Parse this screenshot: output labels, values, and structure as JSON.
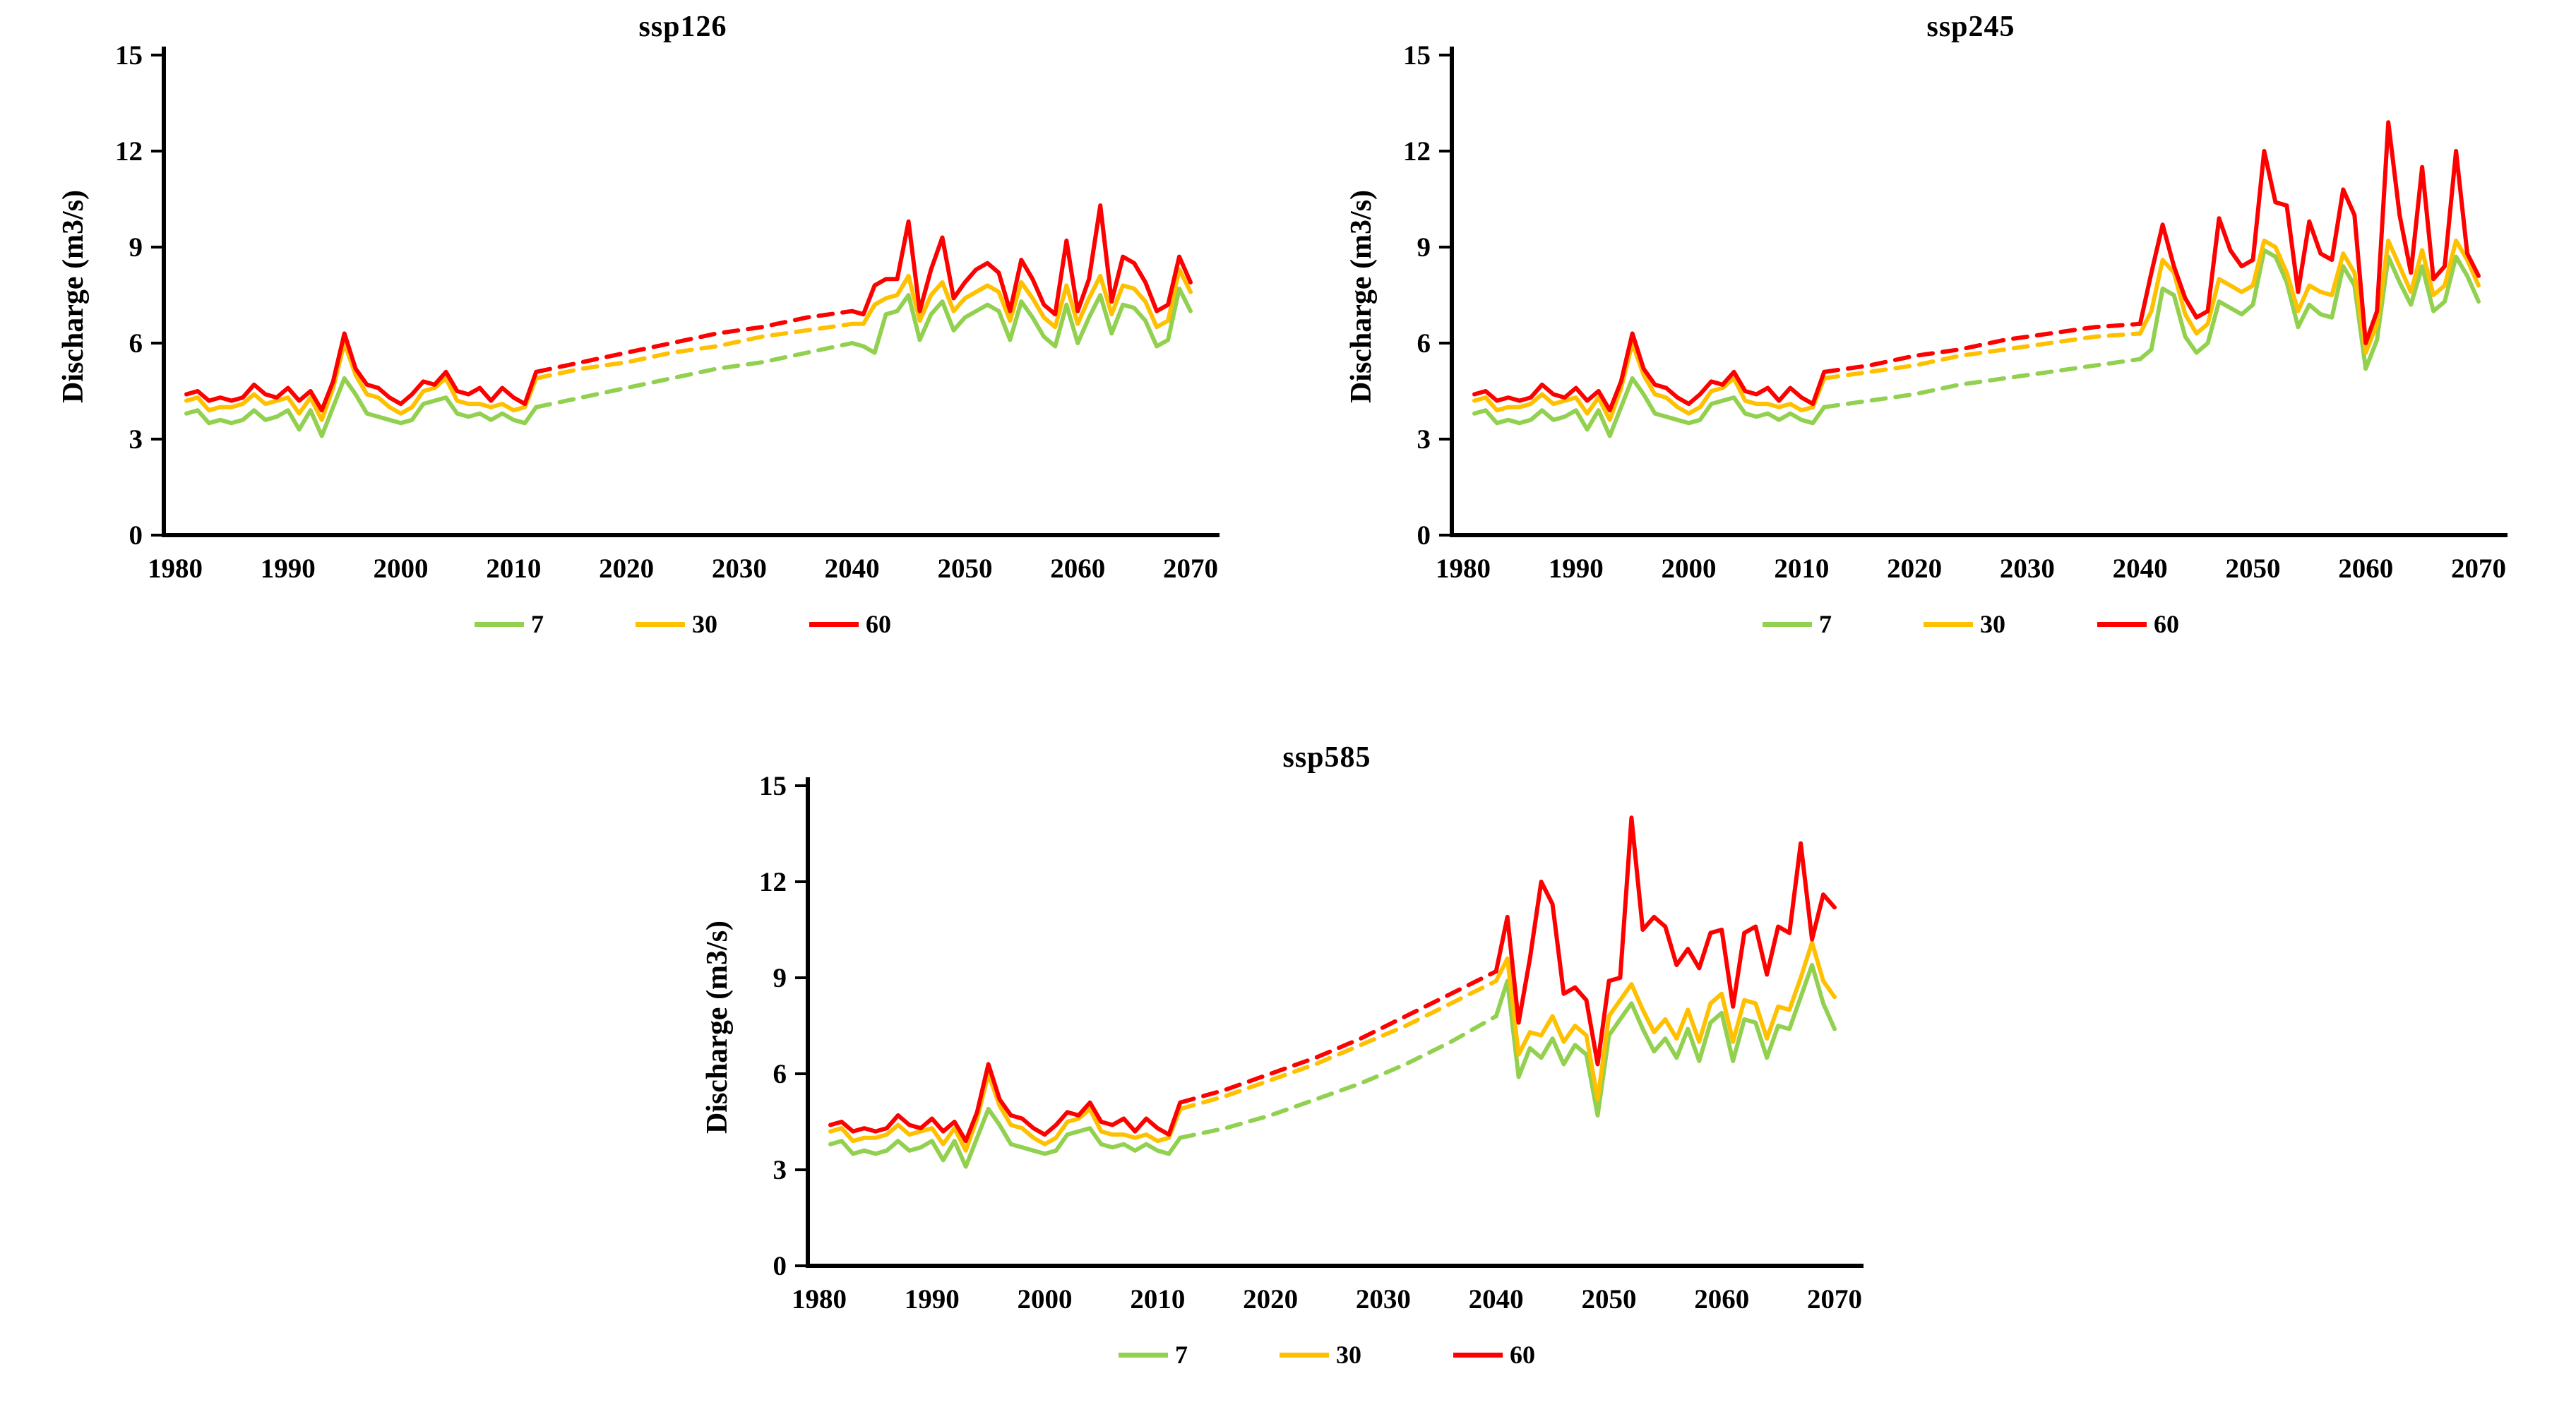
{
  "figure": {
    "background": "#FFFFFF",
    "description_texts": {
      "y_axis_title": "Discharge (m3/s)"
    }
  },
  "colors": {
    "series_7": "#92D050",
    "series_30": "#FFC000",
    "series_60": "#FF0000",
    "axis": "#000000",
    "background": "#FFFFFF"
  },
  "chart_data": [
    {
      "type": "line",
      "title": "ssp126",
      "xlabel": "",
      "ylabel": "Discharge (m3/s)",
      "ylim": [
        0,
        15
      ],
      "xlim": [
        1979,
        2071
      ],
      "yticks": [
        0,
        3,
        6,
        9,
        12,
        15
      ],
      "xticks": [
        1980,
        1990,
        2000,
        2010,
        2020,
        2030,
        2040,
        2050,
        2060,
        2070
      ],
      "grid": false,
      "legend_position": "bottom",
      "hist_years": [
        1981,
        1982,
        1983,
        1984,
        1985,
        1986,
        1987,
        1988,
        1989,
        1990,
        1991,
        1992,
        1993,
        1994,
        1995,
        1996,
        1997,
        1998,
        1999,
        2000,
        2001,
        2002,
        2003,
        2004,
        2005,
        2006,
        2007,
        2008,
        2009,
        2010,
        2011,
        2012
      ],
      "dash_years": [
        2012,
        2016,
        2020,
        2024,
        2028,
        2032,
        2036,
        2040
      ],
      "future_years": [
        2040,
        2041,
        2042,
        2043,
        2044,
        2045,
        2046,
        2047,
        2048,
        2049,
        2050,
        2051,
        2052,
        2053,
        2054,
        2055,
        2056,
        2057,
        2058,
        2059,
        2060,
        2061,
        2062,
        2063,
        2064,
        2065,
        2066,
        2067,
        2068,
        2069,
        2070
      ],
      "series": [
        {
          "name": "7",
          "color": "#92D050",
          "hist": [
            3.8,
            3.9,
            3.5,
            3.6,
            3.5,
            3.6,
            3.9,
            3.6,
            3.7,
            3.9,
            3.3,
            3.9,
            3.1,
            4.0,
            4.9,
            4.4,
            3.8,
            3.7,
            3.6,
            3.5,
            3.6,
            4.1,
            4.2,
            4.3,
            3.8,
            3.7,
            3.8,
            3.6,
            3.8,
            3.6,
            3.5,
            4.0
          ],
          "dash": [
            4.0,
            4.3,
            4.6,
            4.9,
            5.2,
            5.4,
            5.7,
            6.0
          ],
          "future": [
            6.0,
            5.9,
            5.7,
            6.9,
            7.0,
            7.5,
            6.1,
            6.9,
            7.3,
            6.4,
            6.8,
            7.0,
            7.2,
            7.0,
            6.1,
            7.3,
            6.8,
            6.2,
            5.9,
            7.2,
            6.0,
            6.8,
            7.5,
            6.3,
            7.2,
            7.1,
            6.7,
            5.9,
            6.1,
            7.7,
            7.0
          ]
        },
        {
          "name": "30",
          "color": "#FFC000",
          "hist": [
            4.2,
            4.3,
            3.9,
            4.0,
            4.0,
            4.1,
            4.4,
            4.1,
            4.2,
            4.3,
            3.8,
            4.3,
            3.6,
            4.6,
            6.0,
            5.0,
            4.4,
            4.3,
            4.0,
            3.8,
            4.0,
            4.5,
            4.6,
            4.9,
            4.2,
            4.1,
            4.1,
            4.0,
            4.1,
            3.9,
            4.0,
            4.9
          ],
          "dash": [
            4.9,
            5.2,
            5.4,
            5.7,
            5.9,
            6.2,
            6.4,
            6.6
          ],
          "future": [
            6.6,
            6.6,
            7.2,
            7.4,
            7.5,
            8.1,
            6.7,
            7.5,
            7.9,
            7.0,
            7.4,
            7.6,
            7.8,
            7.6,
            6.7,
            7.9,
            7.4,
            6.8,
            6.5,
            7.8,
            6.6,
            7.4,
            8.1,
            6.9,
            7.8,
            7.7,
            7.3,
            6.5,
            6.7,
            8.3,
            7.6
          ]
        },
        {
          "name": "60",
          "color": "#FF0000",
          "hist": [
            4.4,
            4.5,
            4.2,
            4.3,
            4.2,
            4.3,
            4.7,
            4.4,
            4.3,
            4.6,
            4.2,
            4.5,
            3.9,
            4.8,
            6.3,
            5.2,
            4.7,
            4.6,
            4.3,
            4.1,
            4.4,
            4.8,
            4.7,
            5.1,
            4.5,
            4.4,
            4.6,
            4.2,
            4.6,
            4.3,
            4.1,
            5.1
          ],
          "dash": [
            5.1,
            5.4,
            5.7,
            6.0,
            6.3,
            6.5,
            6.8,
            7.0
          ],
          "future": [
            7.0,
            6.9,
            7.8,
            8.0,
            8.0,
            9.8,
            7.0,
            8.3,
            9.3,
            7.4,
            7.9,
            8.3,
            8.5,
            8.2,
            7.0,
            8.6,
            8.0,
            7.2,
            6.9,
            9.2,
            7.0,
            8.0,
            10.3,
            7.3,
            8.7,
            8.5,
            7.9,
            7.0,
            7.2,
            8.7,
            7.9
          ]
        }
      ]
    },
    {
      "type": "line",
      "title": "ssp245",
      "xlabel": "",
      "ylabel": "Discharge (m3/s)",
      "ylim": [
        0,
        15
      ],
      "xlim": [
        1979,
        2071
      ],
      "yticks": [
        0,
        3,
        6,
        9,
        12,
        15
      ],
      "xticks": [
        1980,
        1990,
        2000,
        2010,
        2020,
        2030,
        2040,
        2050,
        2060,
        2070
      ],
      "grid": false,
      "legend_position": "bottom",
      "hist_years": [
        1981,
        1982,
        1983,
        1984,
        1985,
        1986,
        1987,
        1988,
        1989,
        1990,
        1991,
        1992,
        1993,
        1994,
        1995,
        1996,
        1997,
        1998,
        1999,
        2000,
        2001,
        2002,
        2003,
        2004,
        2005,
        2006,
        2007,
        2008,
        2009,
        2010,
        2011,
        2012
      ],
      "dash_years": [
        2012,
        2016,
        2020,
        2024,
        2028,
        2032,
        2036,
        2040
      ],
      "future_years": [
        2040,
        2041,
        2042,
        2043,
        2044,
        2045,
        2046,
        2047,
        2048,
        2049,
        2050,
        2051,
        2052,
        2053,
        2054,
        2055,
        2056,
        2057,
        2058,
        2059,
        2060,
        2061,
        2062,
        2063,
        2064,
        2065,
        2066,
        2067,
        2068,
        2069,
        2070
      ],
      "series": [
        {
          "name": "7",
          "color": "#92D050",
          "hist": [
            3.8,
            3.9,
            3.5,
            3.6,
            3.5,
            3.6,
            3.9,
            3.6,
            3.7,
            3.9,
            3.3,
            3.9,
            3.1,
            4.0,
            4.9,
            4.4,
            3.8,
            3.7,
            3.6,
            3.5,
            3.6,
            4.1,
            4.2,
            4.3,
            3.8,
            3.7,
            3.8,
            3.6,
            3.8,
            3.6,
            3.5,
            4.0
          ],
          "dash": [
            4.0,
            4.2,
            4.4,
            4.7,
            4.9,
            5.1,
            5.3,
            5.5
          ],
          "future": [
            5.5,
            5.8,
            7.7,
            7.5,
            6.2,
            5.7,
            6.0,
            7.3,
            7.1,
            6.9,
            7.2,
            8.9,
            8.7,
            7.9,
            6.5,
            7.2,
            6.9,
            6.8,
            8.4,
            7.8,
            5.2,
            6.1,
            8.7,
            7.9,
            7.2,
            8.4,
            7.0,
            7.3,
            8.7,
            8.1,
            7.3
          ]
        },
        {
          "name": "30",
          "color": "#FFC000",
          "hist": [
            4.2,
            4.3,
            3.9,
            4.0,
            4.0,
            4.1,
            4.4,
            4.1,
            4.2,
            4.3,
            3.8,
            4.3,
            3.6,
            4.6,
            6.0,
            5.0,
            4.4,
            4.3,
            4.0,
            3.8,
            4.0,
            4.5,
            4.6,
            4.9,
            4.2,
            4.1,
            4.1,
            4.0,
            4.1,
            3.9,
            4.0,
            4.9
          ],
          "dash": [
            4.9,
            5.1,
            5.3,
            5.6,
            5.8,
            6.0,
            6.2,
            6.3
          ],
          "future": [
            6.3,
            7.0,
            8.6,
            8.2,
            6.9,
            6.3,
            6.6,
            8.0,
            7.8,
            7.6,
            7.8,
            9.2,
            9.0,
            8.2,
            7.0,
            7.8,
            7.6,
            7.5,
            8.8,
            8.2,
            5.7,
            6.6,
            9.2,
            8.4,
            7.6,
            8.9,
            7.5,
            7.8,
            9.2,
            8.6,
            7.8
          ]
        },
        {
          "name": "60",
          "color": "#FF0000",
          "hist": [
            4.4,
            4.5,
            4.2,
            4.3,
            4.2,
            4.3,
            4.7,
            4.4,
            4.3,
            4.6,
            4.2,
            4.5,
            3.9,
            4.8,
            6.3,
            5.2,
            4.7,
            4.6,
            4.3,
            4.1,
            4.4,
            4.8,
            4.7,
            5.1,
            4.5,
            4.4,
            4.6,
            4.2,
            4.6,
            4.3,
            4.1,
            5.1
          ],
          "dash": [
            5.1,
            5.3,
            5.6,
            5.8,
            6.1,
            6.3,
            6.5,
            6.6
          ],
          "future": [
            6.6,
            8.2,
            9.7,
            8.4,
            7.4,
            6.8,
            7.0,
            9.9,
            8.9,
            8.4,
            8.6,
            12.0,
            10.4,
            10.3,
            7.6,
            9.8,
            8.8,
            8.6,
            10.8,
            10.0,
            6.0,
            7.0,
            12.9,
            10.0,
            8.2,
            11.5,
            8.0,
            8.4,
            12.0,
            8.8,
            8.1
          ]
        }
      ]
    },
    {
      "type": "line",
      "title": "ssp585",
      "xlabel": "",
      "ylabel": "Discharge (m3/s)",
      "ylim": [
        0,
        15
      ],
      "xlim": [
        1979,
        2071
      ],
      "yticks": [
        0,
        3,
        6,
        9,
        12,
        15
      ],
      "xticks": [
        1980,
        1990,
        2000,
        2010,
        2020,
        2030,
        2040,
        2050,
        2060,
        2070
      ],
      "grid": false,
      "legend_position": "bottom",
      "hist_years": [
        1981,
        1982,
        1983,
        1984,
        1985,
        1986,
        1987,
        1988,
        1989,
        1990,
        1991,
        1992,
        1993,
        1994,
        1995,
        1996,
        1997,
        1998,
        1999,
        2000,
        2001,
        2002,
        2003,
        2004,
        2005,
        2006,
        2007,
        2008,
        2009,
        2010,
        2011,
        2012
      ],
      "dash_years": [
        2012,
        2016,
        2020,
        2024,
        2028,
        2032,
        2036,
        2040
      ],
      "future_years": [
        2040,
        2041,
        2042,
        2043,
        2044,
        2045,
        2046,
        2047,
        2048,
        2049,
        2050,
        2051,
        2052,
        2053,
        2054,
        2055,
        2056,
        2057,
        2058,
        2059,
        2060,
        2061,
        2062,
        2063,
        2064,
        2065,
        2066,
        2067,
        2068,
        2069,
        2070
      ],
      "series": [
        {
          "name": "7",
          "color": "#92D050",
          "hist": [
            3.8,
            3.9,
            3.5,
            3.6,
            3.5,
            3.6,
            3.9,
            3.6,
            3.7,
            3.9,
            3.3,
            3.9,
            3.1,
            4.0,
            4.9,
            4.4,
            3.8,
            3.7,
            3.6,
            3.5,
            3.6,
            4.1,
            4.2,
            4.3,
            3.8,
            3.7,
            3.8,
            3.6,
            3.8,
            3.6,
            3.5,
            4.0
          ],
          "dash": [
            4.0,
            4.3,
            4.7,
            5.2,
            5.7,
            6.3,
            7.0,
            7.8
          ],
          "future": [
            7.8,
            8.9,
            5.9,
            6.8,
            6.5,
            7.1,
            6.3,
            6.9,
            6.6,
            4.7,
            7.2,
            7.7,
            8.2,
            7.4,
            6.7,
            7.1,
            6.5,
            7.4,
            6.4,
            7.6,
            7.9,
            6.4,
            7.7,
            7.6,
            6.5,
            7.5,
            7.4,
            8.4,
            9.4,
            8.2,
            7.4
          ]
        },
        {
          "name": "30",
          "color": "#FFC000",
          "hist": [
            4.2,
            4.3,
            3.9,
            4.0,
            4.0,
            4.1,
            4.4,
            4.1,
            4.2,
            4.3,
            3.8,
            4.3,
            3.6,
            4.6,
            6.0,
            5.0,
            4.4,
            4.3,
            4.0,
            3.8,
            4.0,
            4.5,
            4.6,
            4.9,
            4.2,
            4.1,
            4.1,
            4.0,
            4.1,
            3.9,
            4.0,
            4.9
          ],
          "dash": [
            4.9,
            5.3,
            5.8,
            6.3,
            6.9,
            7.5,
            8.2,
            8.9
          ],
          "future": [
            8.9,
            9.6,
            6.6,
            7.3,
            7.2,
            7.8,
            7.0,
            7.5,
            7.2,
            5.2,
            7.8,
            8.3,
            8.8,
            8.0,
            7.3,
            7.7,
            7.1,
            8.0,
            7.0,
            8.2,
            8.5,
            7.0,
            8.3,
            8.2,
            7.1,
            8.1,
            8.0,
            9.0,
            10.1,
            8.9,
            8.4
          ]
        },
        {
          "name": "60",
          "color": "#FF0000",
          "hist": [
            4.4,
            4.5,
            4.2,
            4.3,
            4.2,
            4.3,
            4.7,
            4.4,
            4.3,
            4.6,
            4.2,
            4.5,
            3.9,
            4.8,
            6.3,
            5.2,
            4.7,
            4.6,
            4.3,
            4.1,
            4.4,
            4.8,
            4.7,
            5.1,
            4.5,
            4.4,
            4.6,
            4.2,
            4.6,
            4.3,
            4.1,
            5.1
          ],
          "dash": [
            5.1,
            5.5,
            6.0,
            6.5,
            7.1,
            7.8,
            8.5,
            9.2
          ],
          "future": [
            9.2,
            10.9,
            7.6,
            9.6,
            12.0,
            11.3,
            8.5,
            8.7,
            8.3,
            6.3,
            8.9,
            9.0,
            14.0,
            10.5,
            10.9,
            10.6,
            9.4,
            9.9,
            9.3,
            10.4,
            10.5,
            8.1,
            10.4,
            10.6,
            9.1,
            10.6,
            10.4,
            13.2,
            10.2,
            11.6,
            11.2
          ]
        }
      ]
    }
  ]
}
